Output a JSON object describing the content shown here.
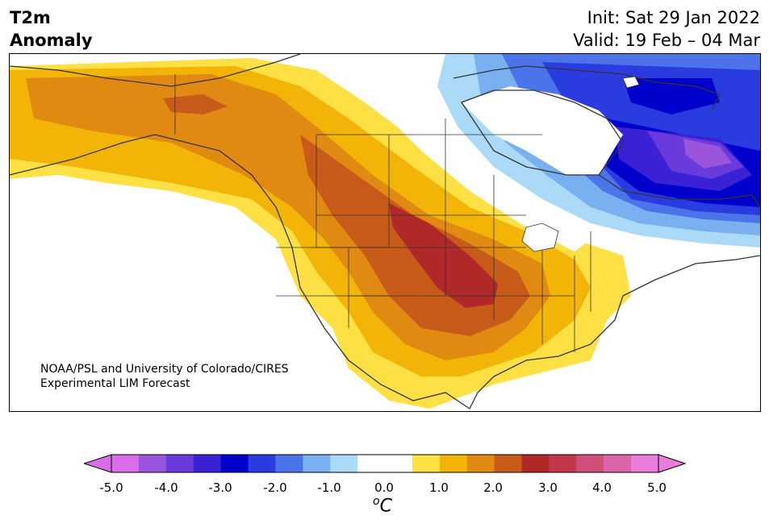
{
  "header": {
    "title_line1": "T2m",
    "title_line2": "Anomaly",
    "init": "Init: Sat 29 Jan 2022",
    "valid": "Valid: 19 Feb – 04 Mar"
  },
  "credit": {
    "line1": "NOAA/PSL and University of Colorado/CIRES",
    "line2": "Experimental LIM Forecast"
  },
  "colorbar": {
    "ticks": [
      "-5.0",
      "-4.0",
      "-3.0",
      "-2.0",
      "-1.0",
      "0.0",
      "1.0",
      "2.0",
      "3.0",
      "4.0",
      "5.0"
    ],
    "unit_sup": "o",
    "unit_base": "C",
    "low_extend_color": "#d76ee8",
    "high_extend_color": "#e87ddc",
    "colors": [
      "#d76ee8",
      "#9b55dd",
      "#6a3bdc",
      "#3a22d4",
      "#0000cc",
      "#2a3be0",
      "#4c74ea",
      "#78b0f0",
      "#aadaf8",
      "#ffffff",
      "#ffffff",
      "#fde044",
      "#f2b407",
      "#e08a12",
      "#c85a1a",
      "#b02828",
      "#c2384a",
      "#d1507a",
      "#dc64a8",
      "#e87ddc"
    ]
  }
}
